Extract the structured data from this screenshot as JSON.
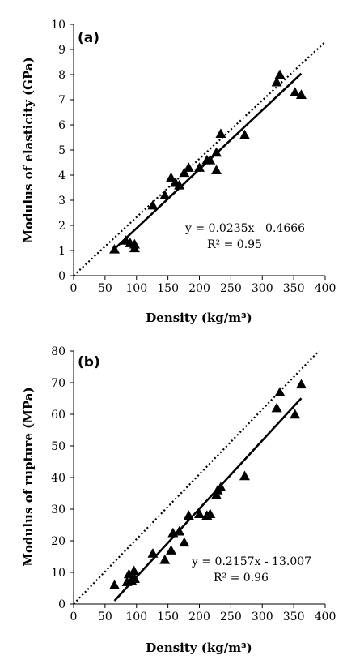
{
  "chart_data": [
    {
      "type": "scatter",
      "panel_label": "(a)",
      "xlabel": "Density (kg/m³)",
      "ylabel": "Modulus of elasticity (GPa)",
      "xlim": [
        0,
        400
      ],
      "ylim": [
        0,
        10
      ],
      "x_ticks": [
        "0",
        "50",
        "100",
        "150",
        "200",
        "250",
        "300",
        "350",
        "400"
      ],
      "y_ticks": [
        "0",
        "1",
        "2",
        "3",
        "4",
        "5",
        "6",
        "7",
        "8",
        "9",
        "10"
      ],
      "grid": false,
      "marker": "triangle",
      "series": [
        {
          "points": [
            [
              65,
              1.05
            ],
            [
              83,
              1.4
            ],
            [
              90,
              1.3
            ],
            [
              97,
              1.1
            ],
            [
              97,
              1.25
            ],
            [
              126,
              2.8
            ],
            [
              145,
              3.2
            ],
            [
              155,
              3.9
            ],
            [
              162,
              3.7
            ],
            [
              168,
              3.6
            ],
            [
              176,
              4.1
            ],
            [
              183,
              4.3
            ],
            [
              200,
              4.3
            ],
            [
              212,
              4.6
            ],
            [
              217,
              4.6
            ],
            [
              227,
              4.2
            ],
            [
              227,
              4.9
            ],
            [
              234,
              5.65
            ],
            [
              272,
              5.6
            ],
            [
              323,
              7.7
            ],
            [
              328,
              8.0
            ],
            [
              352,
              7.3
            ],
            [
              362,
              7.2
            ]
          ]
        }
      ],
      "fit_line": {
        "slope": 0.0235,
        "intercept": -0.4666,
        "x_range": [
          65,
          362
        ]
      },
      "reference_line": {
        "style": "dotted",
        "x_range": [
          0,
          400
        ],
        "y_range": [
          0,
          9.3
        ]
      },
      "annotations": [
        "y = 0.0235x - 0.4666",
        "R² = 0.95"
      ]
    },
    {
      "type": "scatter",
      "panel_label": "(b)",
      "xlabel": "Density (kg/m³)",
      "ylabel": "Modulus of rupture (MPa)",
      "xlim": [
        0,
        400
      ],
      "ylim": [
        0,
        80
      ],
      "x_ticks": [
        "0",
        "50",
        "100",
        "150",
        "200",
        "250",
        "300",
        "350",
        "400"
      ],
      "y_ticks": [
        "0",
        "10",
        "20",
        "30",
        "40",
        "50",
        "60",
        "70",
        "80"
      ],
      "grid": false,
      "marker": "triangle",
      "series": [
        {
          "points": [
            [
              65,
              6
            ],
            [
              85,
              7
            ],
            [
              88,
              9.5
            ],
            [
              92,
              7.5
            ],
            [
              96,
              10.5
            ],
            [
              97,
              8
            ],
            [
              126,
              16
            ],
            [
              145,
              14
            ],
            [
              155,
              17
            ],
            [
              158,
              22.5
            ],
            [
              168,
              23
            ],
            [
              176,
              19.5
            ],
            [
              183,
              28
            ],
            [
              200,
              28.5
            ],
            [
              212,
              28
            ],
            [
              217,
              28.5
            ],
            [
              227,
              34.5
            ],
            [
              229,
              36
            ],
            [
              234,
              37
            ],
            [
              272,
              40.5
            ],
            [
              323,
              62
            ],
            [
              328,
              67
            ],
            [
              352,
              60
            ],
            [
              362,
              69.5
            ]
          ]
        }
      ],
      "fit_line": {
        "slope": 0.2157,
        "intercept": -13.007,
        "x_range": [
          65,
          362
        ]
      },
      "reference_line": {
        "style": "dotted",
        "x_range": [
          0,
          390
        ],
        "y_range": [
          0,
          80
        ]
      },
      "annotations": [
        "y = 0.2157x - 13.007",
        "R² = 0.96"
      ]
    }
  ]
}
